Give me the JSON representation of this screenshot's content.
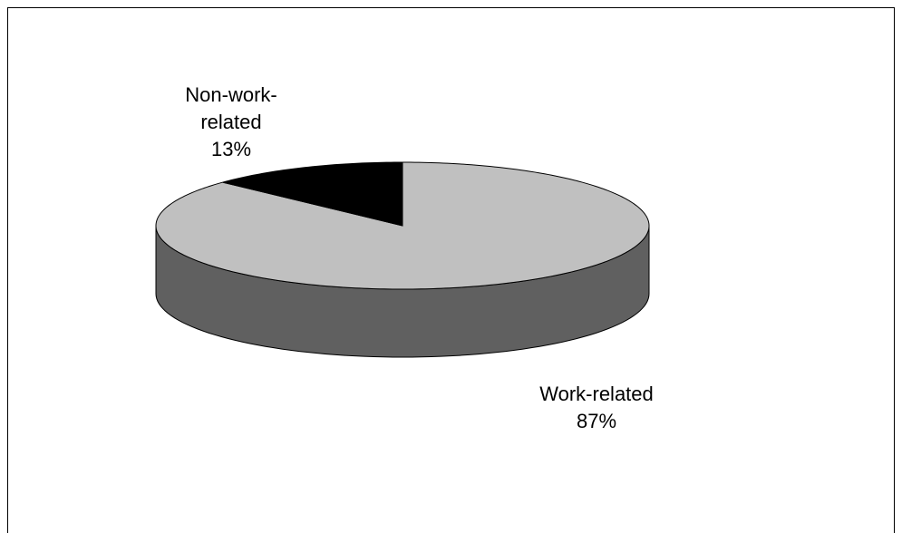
{
  "chart_data": {
    "type": "pie3d",
    "categories": [
      "Work-related",
      "Non-work-related"
    ],
    "values": [
      87,
      13
    ],
    "value_labels": [
      "87%",
      "13%"
    ],
    "colors": [
      "#c0c0c0",
      "#000000"
    ]
  }
}
